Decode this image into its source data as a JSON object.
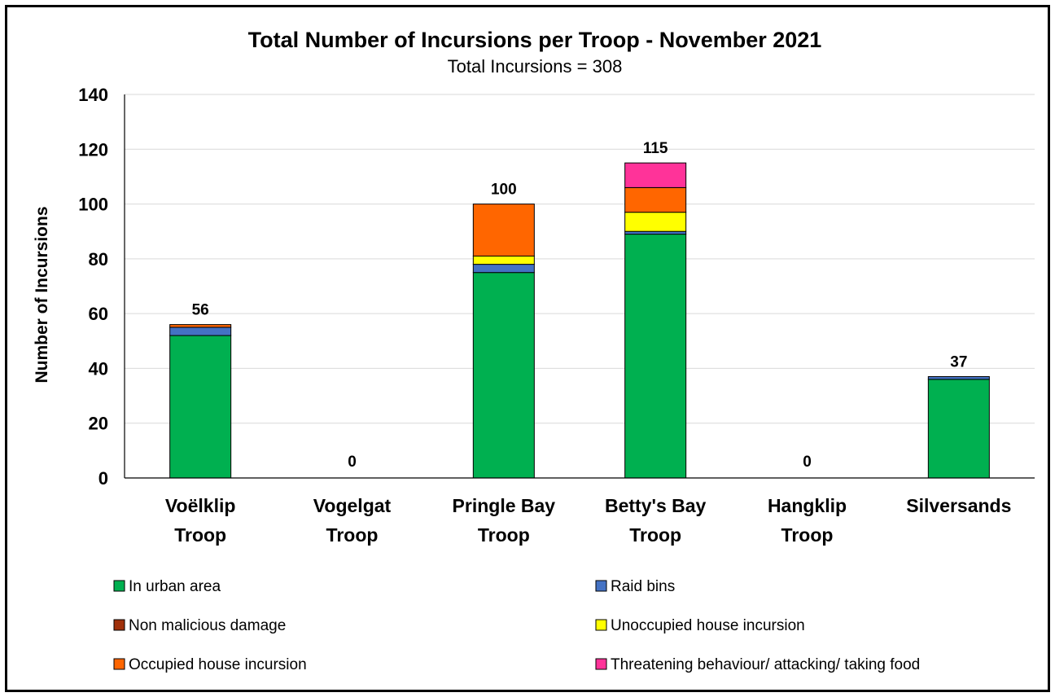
{
  "chart_data": {
    "type": "bar",
    "stacked": true,
    "title": "Total Number of Incursions per Troop - November 2021",
    "subtitle": "Total Incursions = 308",
    "ylabel": "Number of Incursions",
    "xlabel": "",
    "ylim": [
      0,
      140
    ],
    "yticks": [
      "0",
      "20",
      "40",
      "60",
      "80",
      "100",
      "120",
      "140"
    ],
    "grid": true,
    "legend_position": "bottom",
    "categories": [
      [
        "Voëlklip",
        "Troop"
      ],
      [
        "Vogelgat",
        "Troop"
      ],
      [
        "Pringle Bay",
        "Troop"
      ],
      [
        "Betty's Bay",
        "Troop"
      ],
      [
        "Hangklip",
        "Troop"
      ],
      [
        "Silversands"
      ]
    ],
    "totals": [
      "56",
      "0",
      "100",
      "115",
      "0",
      "37"
    ],
    "series": [
      {
        "name": "In urban area",
        "color": "#00b050",
        "values": [
          52,
          0,
          75,
          89,
          0,
          36
        ]
      },
      {
        "name": "Raid bins",
        "color": "#4472c4",
        "values": [
          3,
          0,
          3,
          1,
          0,
          1
        ]
      },
      {
        "name": "Non malicious damage",
        "color": "#c0504d",
        "values": [
          0,
          0,
          0,
          0,
          0,
          0
        ]
      },
      {
        "name": "Unoccupied house incursion",
        "color": "#ffff00",
        "values": [
          0,
          0,
          3,
          7,
          0,
          0
        ]
      },
      {
        "name": "Occupied house incursion",
        "color": "#ff6600",
        "values": [
          1,
          0,
          19,
          9,
          0,
          0
        ]
      },
      {
        "name": "Threatening behaviour/ attacking/ taking food",
        "color": "#ff3399",
        "values": [
          0,
          0,
          0,
          9,
          0,
          0
        ]
      }
    ],
    "legend_colors_override": {
      "Non malicious damage": "#a0300a"
    }
  }
}
